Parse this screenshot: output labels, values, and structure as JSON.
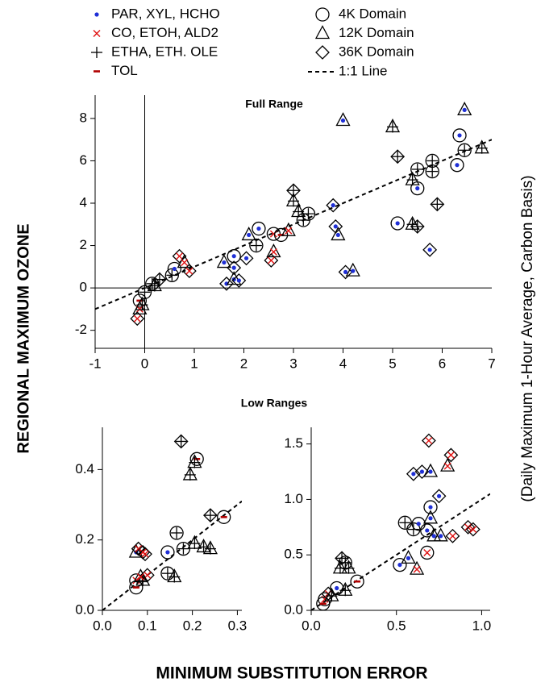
{
  "chart_data": [
    {
      "type": "scatter",
      "title": "Full Range",
      "ylabel": "REGIONAL MAXIMUM OZONE",
      "ylabel2": "(Daily Maximum 1-Hour Average, Carbon Basis)",
      "xlabel": "MINIMUM SUBSTITUTION ERROR",
      "species": [
        {
          "name": "PAR, XYL, HCHO",
          "marker": "dot",
          "color": "#1f2fd6"
        },
        {
          "name": "CO, ETOH, ALD2",
          "marker": "x",
          "color": "#e01010"
        },
        {
          "name": "ETHA, ETH. OLE",
          "marker": "plus",
          "color": "#000000"
        },
        {
          "name": "TOL",
          "marker": "dash",
          "color": "#b00000"
        }
      ],
      "domains": [
        {
          "name": "4K Domain",
          "shape": "circle"
        },
        {
          "name": "12K Domain",
          "shape": "triangle"
        },
        {
          "name": "36K Domain",
          "shape": "diamond"
        }
      ],
      "reference_line": {
        "name": "1:1 Line",
        "style": "dashed"
      },
      "zero_lines": true,
      "xlim": [
        -1,
        7
      ],
      "ylim": [
        -2.85,
        9.1
      ],
      "xticks": [
        -1,
        0,
        1,
        2,
        3,
        4,
        5,
        6,
        7
      ],
      "yticks": [
        -2,
        0,
        2,
        4,
        6,
        8
      ],
      "x": [
        4.0,
        6.45,
        5.0,
        6.35,
        6.45,
        6.8,
        5.8,
        5.8,
        6.3,
        5.5,
        5.4,
        5.5,
        5.1,
        5.1,
        5.4,
        5.5,
        5.9,
        5.75,
        3.8,
        3.85,
        3.9,
        4.05,
        4.2,
        3.0,
        3.0,
        3.1,
        3.3,
        3.2,
        2.3,
        2.1,
        2.25,
        2.6,
        2.75,
        2.9,
        2.6,
        2.55,
        1.8,
        1.6,
        2.05,
        1.65,
        1.8,
        1.9,
        1.8,
        0.7,
        0.8,
        0.55,
        0.9,
        0.6,
        0.15,
        0.3,
        0.2,
        -0.1,
        -0.1,
        -0.15,
        0.0,
        -0.05
      ],
      "y": [
        7.9,
        8.4,
        7.6,
        7.2,
        6.5,
        6.6,
        6.0,
        5.5,
        5.8,
        5.6,
        5.1,
        4.7,
        6.2,
        3.05,
        3.0,
        2.9,
        3.95,
        1.8,
        3.9,
        2.9,
        2.5,
        0.75,
        0.8,
        4.6,
        4.1,
        3.6,
        3.5,
        3.2,
        2.8,
        2.5,
        2.0,
        2.55,
        2.5,
        2.7,
        1.7,
        1.3,
        1.5,
        1.2,
        1.4,
        0.2,
        0.4,
        0.35,
        0.95,
        1.5,
        1.2,
        0.6,
        0.8,
        0.9,
        0.2,
        0.4,
        0.1,
        -0.6,
        -1.0,
        -1.45,
        -0.2,
        -0.8
      ],
      "species_index": [
        0,
        0,
        2,
        0,
        2,
        2,
        2,
        2,
        0,
        2,
        2,
        0,
        2,
        0,
        2,
        2,
        2,
        0,
        0,
        0,
        0,
        0,
        0,
        2,
        2,
        2,
        2,
        2,
        0,
        0,
        2,
        1,
        3,
        1,
        1,
        1,
        0,
        0,
        0,
        0,
        0,
        0,
        0,
        1,
        1,
        2,
        1,
        0,
        2,
        2,
        2,
        3,
        1,
        1,
        2,
        2
      ],
      "domain_index": [
        1,
        1,
        1,
        0,
        0,
        1,
        0,
        0,
        0,
        0,
        1,
        0,
        2,
        0,
        1,
        2,
        2,
        2,
        2,
        2,
        1,
        2,
        1,
        2,
        1,
        1,
        0,
        0,
        0,
        1,
        0,
        0,
        0,
        1,
        1,
        2,
        0,
        1,
        2,
        2,
        1,
        2,
        2,
        2,
        1,
        0,
        2,
        0,
        0,
        2,
        1,
        0,
        1,
        2,
        0,
        1
      ]
    },
    {
      "type": "scatter",
      "title": "Low Ranges",
      "xlim": [
        0,
        0.31
      ],
      "ylim": [
        0,
        0.52
      ],
      "xticks": [
        {
          "value": 0,
          "label": "0.0"
        },
        0.1,
        0.2,
        0.3
      ],
      "yticks": [
        {
          "value": 0,
          "label": "0.0"
        },
        0.2,
        0.4
      ],
      "x": [
        0.175,
        0.21,
        0.205,
        0.195,
        0.27,
        0.24,
        0.225,
        0.24,
        0.165,
        0.145,
        0.18,
        0.205,
        0.145,
        0.16,
        0.075,
        0.08,
        0.09,
        0.095,
        0.075,
        0.075,
        0.09,
        0.1,
        0.085
      ],
      "y": [
        0.48,
        0.43,
        0.42,
        0.385,
        0.265,
        0.27,
        0.18,
        0.175,
        0.22,
        0.165,
        0.175,
        0.19,
        0.105,
        0.095,
        0.165,
        0.175,
        0.165,
        0.16,
        0.085,
        0.065,
        0.085,
        0.1,
        0.095
      ],
      "species_index": [
        2,
        3,
        2,
        2,
        3,
        2,
        2,
        2,
        2,
        0,
        2,
        2,
        2,
        2,
        0,
        1,
        1,
        1,
        1,
        3,
        2,
        1,
        1
      ],
      "domain_index": [
        2,
        0,
        1,
        1,
        0,
        2,
        1,
        1,
        0,
        0,
        0,
        1,
        0,
        1,
        1,
        2,
        2,
        2,
        0,
        0,
        1,
        2,
        1
      ]
    },
    {
      "type": "scatter",
      "xlim": [
        0,
        1.05
      ],
      "ylim": [
        0,
        1.65
      ],
      "xticks": [
        {
          "value": 0,
          "label": "0.0"
        },
        0.5,
        {
          "value": 1,
          "label": "1.0"
        }
      ],
      "yticks": [
        {
          "value": 0,
          "label": "0.0"
        },
        0.5,
        {
          "value": 1,
          "label": "1.0"
        },
        1.5
      ],
      "x": [
        0.69,
        0.82,
        0.8,
        0.6,
        0.65,
        0.7,
        0.75,
        0.7,
        0.7,
        0.55,
        0.6,
        0.63,
        0.68,
        0.72,
        0.76,
        0.68,
        0.62,
        0.52,
        0.57,
        0.83,
        0.92,
        0.95,
        0.18,
        0.2,
        0.17,
        0.22,
        0.27,
        0.15,
        0.1,
        0.08,
        0.07,
        0.2,
        0.12
      ],
      "y": [
        1.53,
        1.4,
        1.3,
        1.23,
        1.25,
        1.25,
        1.03,
        0.93,
        0.83,
        0.79,
        0.73,
        0.78,
        0.72,
        0.67,
        0.67,
        0.52,
        0.37,
        0.41,
        0.47,
        0.67,
        0.75,
        0.73,
        0.47,
        0.43,
        0.38,
        0.38,
        0.26,
        0.2,
        0.15,
        0.1,
        0.06,
        0.18,
        0.13
      ],
      "species_index": [
        1,
        1,
        1,
        0,
        0,
        0,
        0,
        0,
        0,
        2,
        2,
        0,
        0,
        0,
        0,
        1,
        1,
        0,
        0,
        1,
        1,
        1,
        2,
        2,
        2,
        2,
        3,
        0,
        1,
        1,
        3,
        2,
        2
      ],
      "domain_index": [
        2,
        2,
        1,
        2,
        2,
        1,
        2,
        0,
        1,
        0,
        0,
        0,
        0,
        1,
        1,
        0,
        1,
        0,
        1,
        2,
        2,
        2,
        2,
        0,
        1,
        1,
        0,
        0,
        2,
        0,
        0,
        1,
        1
      ]
    }
  ]
}
